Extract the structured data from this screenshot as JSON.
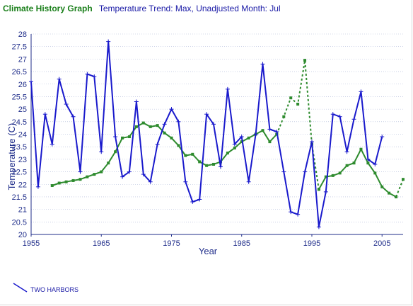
{
  "header": {
    "title": "Climate History Graph",
    "subtitle": "Temperature Trend: Max, Unadjusted Month: Jul"
  },
  "chart_data": {
    "type": "line",
    "xlabel": "Year",
    "ylabel": "Temperature (C)",
    "xlim": [
      1955,
      2008
    ],
    "ylim": [
      20,
      28
    ],
    "x_ticks": [
      "1955",
      "1965",
      "1975",
      "1985",
      "1995",
      "2005"
    ],
    "y_ticks": [
      "20",
      "20.5",
      "21",
      "21.5",
      "22",
      "22.5",
      "23",
      "23.5",
      "24",
      "24.5",
      "25",
      "25.5",
      "26",
      "26.5",
      "27",
      "27.5",
      "28"
    ],
    "grid": "horizontal",
    "colors": {
      "series": "#1a1acc",
      "trend": "#2e8b2e",
      "grid": "#aab4d6",
      "axis": "#1f2d8a"
    },
    "series": [
      {
        "name": "TWO HARBORS",
        "points": [
          [
            1955,
            26.1
          ],
          [
            1956,
            21.9
          ],
          [
            1957,
            24.8
          ],
          [
            1958,
            23.6
          ],
          [
            1959,
            26.2
          ],
          [
            1960,
            25.2
          ],
          [
            1961,
            24.7
          ],
          [
            1962,
            22.5
          ],
          [
            1963,
            26.4
          ],
          [
            1964,
            26.3
          ],
          [
            1965,
            23.3
          ],
          [
            1966,
            27.7
          ],
          [
            1967,
            23.9
          ],
          [
            1968,
            22.3
          ],
          [
            1969,
            22.5
          ],
          [
            1970,
            25.3
          ],
          [
            1971,
            22.4
          ],
          [
            1972,
            22.1
          ],
          [
            1973,
            23.6
          ],
          [
            1974,
            24.4
          ],
          [
            1975,
            25.0
          ],
          [
            1976,
            24.5
          ],
          [
            1977,
            22.1
          ],
          [
            1978,
            21.3
          ],
          [
            1979,
            21.4
          ],
          [
            1980,
            24.8
          ],
          [
            1981,
            24.4
          ],
          [
            1982,
            22.7
          ],
          [
            1983,
            25.8
          ],
          [
            1984,
            23.6
          ],
          [
            1985,
            23.9
          ],
          [
            1986,
            22.1
          ],
          [
            1987,
            24.0
          ],
          [
            1988,
            26.8
          ],
          [
            1989,
            24.2
          ],
          [
            1990,
            24.1
          ],
          [
            1991,
            22.5
          ],
          [
            1992,
            20.9
          ],
          [
            1993,
            20.8
          ],
          [
            1994,
            22.5
          ],
          [
            1995,
            23.7
          ],
          [
            1996,
            20.3
          ],
          [
            1997,
            21.7
          ],
          [
            1998,
            24.8
          ],
          [
            1999,
            24.7
          ],
          [
            2000,
            23.3
          ],
          [
            2001,
            24.6
          ],
          [
            2002,
            25.7
          ],
          [
            2003,
            23.0
          ],
          [
            2004,
            22.8
          ],
          [
            2005,
            23.9
          ]
        ]
      }
    ],
    "trend_segments": [
      {
        "style": "solid",
        "points": [
          [
            1958,
            21.95
          ],
          [
            1959,
            22.05
          ],
          [
            1960,
            22.1
          ],
          [
            1961,
            22.15
          ],
          [
            1962,
            22.2
          ],
          [
            1963,
            22.3
          ],
          [
            1964,
            22.4
          ],
          [
            1965,
            22.5
          ],
          [
            1966,
            22.85
          ],
          [
            1967,
            23.3
          ],
          [
            1968,
            23.85
          ],
          [
            1969,
            23.9
          ],
          [
            1970,
            24.3
          ],
          [
            1971,
            24.45
          ],
          [
            1972,
            24.3
          ],
          [
            1973,
            24.35
          ],
          [
            1974,
            24.05
          ],
          [
            1975,
            23.85
          ],
          [
            1976,
            23.55
          ],
          [
            1977,
            23.15
          ],
          [
            1978,
            23.2
          ],
          [
            1979,
            22.9
          ],
          [
            1980,
            22.75
          ],
          [
            1981,
            22.8
          ],
          [
            1982,
            22.9
          ],
          [
            1983,
            23.25
          ],
          [
            1984,
            23.45
          ],
          [
            1985,
            23.7
          ],
          [
            1986,
            23.85
          ],
          [
            1987,
            24.0
          ],
          [
            1988,
            24.15
          ],
          [
            1989,
            23.7
          ],
          [
            1990,
            24.0
          ]
        ]
      },
      {
        "style": "dashed",
        "points": [
          [
            1990,
            24.0
          ],
          [
            1991,
            24.7
          ],
          [
            1992,
            25.45
          ],
          [
            1993,
            25.2
          ],
          [
            1994,
            26.95
          ],
          [
            1995,
            23.6
          ],
          [
            1996,
            21.8
          ]
        ]
      },
      {
        "style": "solid",
        "points": [
          [
            1996,
            21.8
          ],
          [
            1997,
            22.3
          ],
          [
            1998,
            22.35
          ],
          [
            1999,
            22.45
          ],
          [
            2000,
            22.75
          ],
          [
            2001,
            22.85
          ],
          [
            2002,
            23.4
          ],
          [
            2003,
            22.85
          ],
          [
            2004,
            22.45
          ],
          [
            2005,
            21.9
          ],
          [
            2006,
            21.65
          ],
          [
            2007,
            21.5
          ]
        ]
      },
      {
        "style": "dashed",
        "points": [
          [
            2007,
            21.5
          ],
          [
            2008,
            22.2
          ]
        ]
      }
    ]
  }
}
